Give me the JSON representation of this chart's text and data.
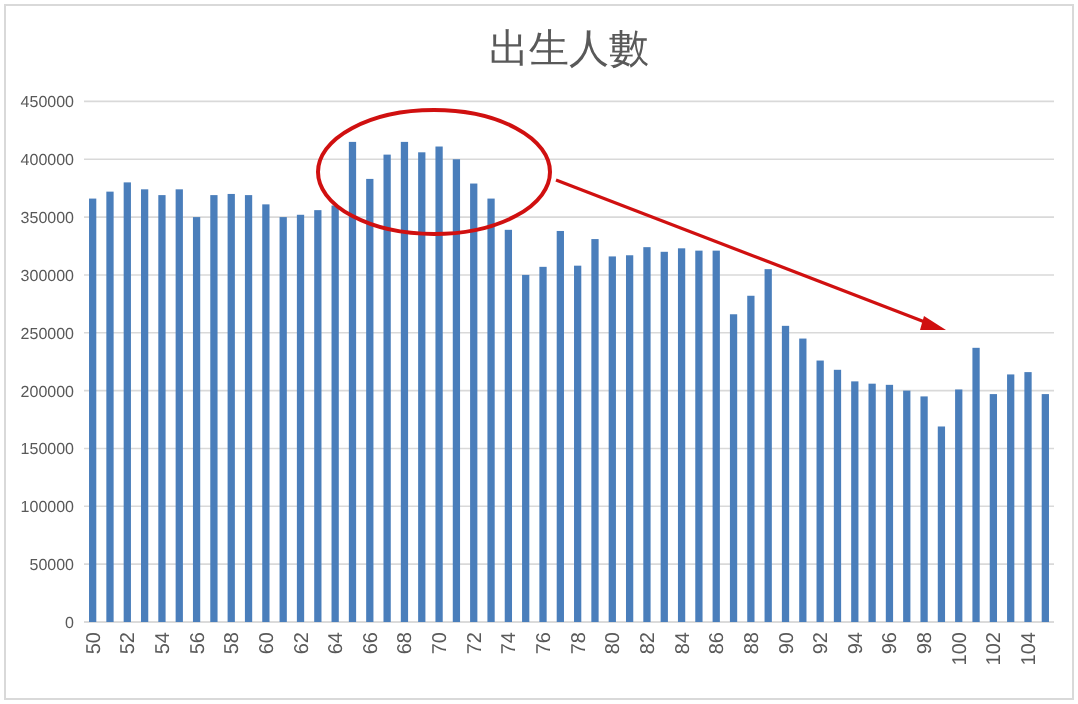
{
  "chart_data": {
    "type": "bar",
    "title": "出生人數",
    "categories": [
      "50",
      null,
      "52",
      null,
      "54",
      null,
      "56",
      null,
      "58",
      null,
      "60",
      null,
      "62",
      null,
      "64",
      null,
      "66",
      null,
      "68",
      null,
      "70",
      null,
      "72",
      null,
      "74",
      null,
      "76",
      null,
      "78",
      null,
      "80",
      null,
      "82",
      null,
      "84",
      null,
      "86",
      null,
      "88",
      null,
      "90",
      null,
      "92",
      null,
      "94",
      null,
      "96",
      null,
      "98",
      null,
      "100",
      null,
      "102",
      null,
      "104",
      null
    ],
    "values": [
      366000,
      372000,
      380000,
      374000,
      369000,
      374000,
      350000,
      369000,
      370000,
      369000,
      361000,
      350000,
      352000,
      356000,
      360000,
      415000,
      383000,
      404000,
      415000,
      406000,
      411000,
      400000,
      379000,
      366000,
      339000,
      300000,
      307000,
      338000,
      308000,
      331000,
      316000,
      317000,
      324000,
      320000,
      323000,
      321000,
      321000,
      266000,
      282000,
      305000,
      256000,
      245000,
      226000,
      218000,
      208000,
      206000,
      205000,
      200000,
      195000,
      169000,
      201000,
      237000,
      197000,
      214000,
      216000,
      197000
    ],
    "color": "#4a7ebb",
    "ylim": [
      0,
      450000
    ],
    "yticks": [
      0,
      50000,
      100000,
      150000,
      200000,
      250000,
      300000,
      350000,
      400000,
      450000
    ],
    "grid": "y"
  }
}
